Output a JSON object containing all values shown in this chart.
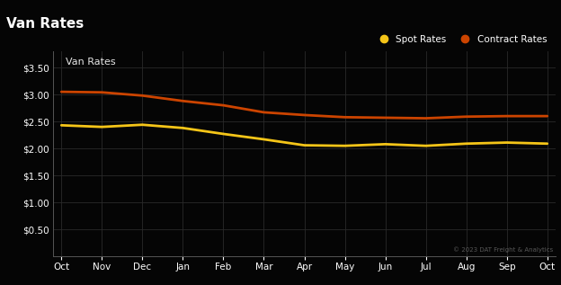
{
  "title": "Van Rates",
  "subtitle": "Van Rates",
  "title_bg_color": "#1c2333",
  "plot_bg_color": "#050505",
  "fig_bg_color": "#050505",
  "grid_color": "#2a2a2a",
  "text_color": "#ffffff",
  "watermark": "© 2023 DAT Freight & Analytics",
  "months": [
    "Oct",
    "Nov",
    "Dec",
    "Jan",
    "Feb",
    "Mar",
    "Apr",
    "May",
    "Jun",
    "Jul",
    "Aug",
    "Sep",
    "Oct"
  ],
  "spot_rates": [
    2.43,
    2.4,
    2.44,
    2.38,
    2.27,
    2.17,
    2.06,
    2.05,
    2.08,
    2.05,
    2.09,
    2.11,
    2.09
  ],
  "contract_rates": [
    3.05,
    3.04,
    2.98,
    2.88,
    2.8,
    2.67,
    2.62,
    2.58,
    2.57,
    2.56,
    2.59,
    2.6,
    2.6
  ],
  "spot_color": "#f5c518",
  "contract_color": "#cc4400",
  "ylim": [
    0,
    3.8
  ],
  "yticks": [
    0.5,
    1.0,
    1.5,
    2.0,
    2.5,
    3.0,
    3.5
  ],
  "ytick_labels": [
    "$0.50",
    "$1.00",
    "$1.50",
    "$2.00",
    "$2.50",
    "$3.00",
    "$3.50"
  ],
  "legend_spot": "Spot Rates",
  "legend_contract": "Contract Rates",
  "title_fontsize": 11,
  "subtitle_fontsize": 8,
  "axis_fontsize": 7.5,
  "legend_fontsize": 7.5
}
